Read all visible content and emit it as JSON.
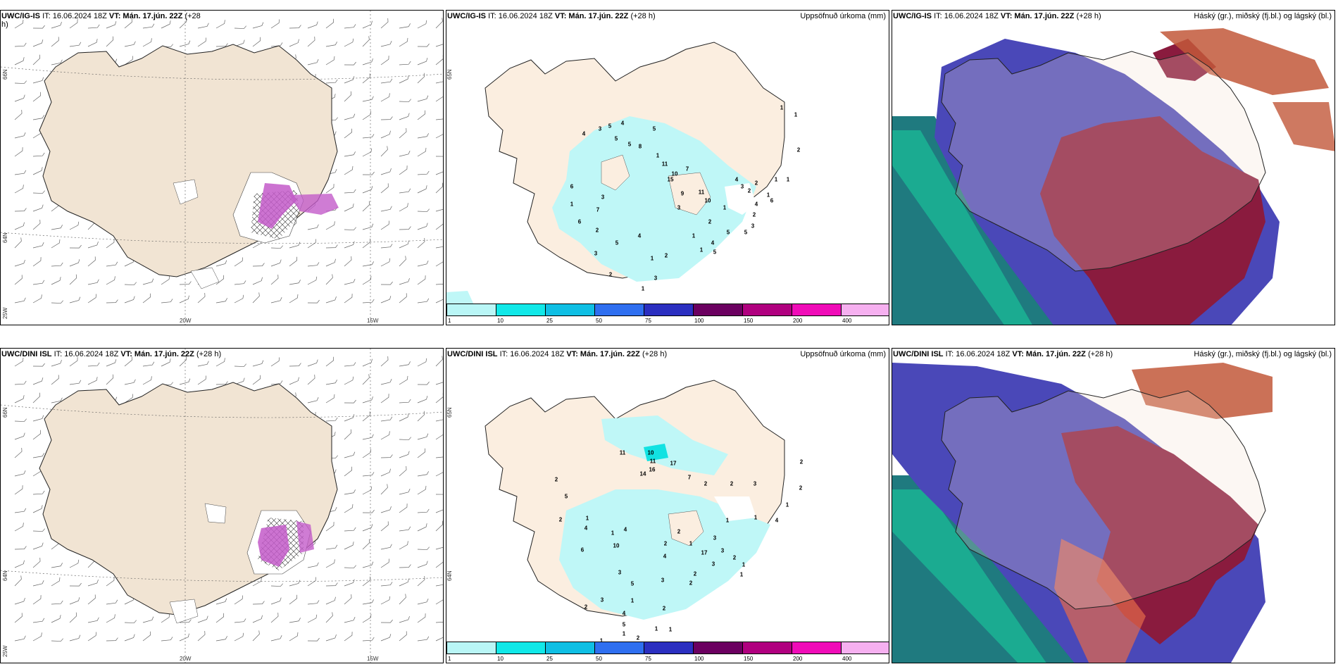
{
  "colors": {
    "land": "#f1e4d3",
    "land_light": "#fbeee0",
    "snow_purple": "#c35bc9",
    "precip_cyan": "#bff7f7",
    "high_cloud_red": "#8a1b3e",
    "mid_cloud_blue": "#4a48b8",
    "low_cloud_green": "#1ab896",
    "sea_teal": "#1f7a7f"
  },
  "panels": [
    {
      "id": "wind-top",
      "model": "UWC/IG-IS",
      "it_label": "IT: 16.06.2024 18Z",
      "vt_label": "VT: Mán. 17.jún. 22Z",
      "lead": "(+28",
      "lead_cont": "h)",
      "right_title": "",
      "lon_labels": [
        "20W",
        "15W"
      ],
      "lat_labels": [
        "66N",
        "64N",
        "25W"
      ]
    },
    {
      "id": "precip-top",
      "model": "UWC/IG-IS",
      "it_label": "IT: 16.06.2024 18Z",
      "vt_label": "VT: Mán. 17.jún. 22Z",
      "lead": "(+28 h)",
      "right_title": "Uppsöfnuð úrkoma (mm)",
      "lat_labels": [
        "65N",
        "64N"
      ],
      "values": [
        "4",
        "3",
        "5",
        "4",
        "5",
        "5",
        "8",
        "5",
        "1",
        "11",
        "10",
        "7",
        "15",
        "9",
        "11",
        "3",
        "10",
        "1",
        "3",
        "2",
        "4",
        "6",
        "1",
        "7",
        "3",
        "2",
        "6",
        "3",
        "5",
        "4",
        "1",
        "2",
        "3",
        "1",
        "2",
        "1",
        "4",
        "5",
        "5",
        "1",
        "2",
        "5",
        "2",
        "1",
        "3",
        "2",
        "4",
        "6",
        "1",
        "1",
        "1",
        "2",
        "1"
      ]
    },
    {
      "id": "cloud-top",
      "model": "UWC/IG-IS",
      "it_label": "IT: 16.06.2024 18Z",
      "vt_label": "VT: Mán. 17.jún. 22Z",
      "lead": "(+28 h)",
      "right_title": "Háský (gr.), miðský (fj.bl.) og lágský (bl.)"
    },
    {
      "id": "wind-bottom",
      "model": "UWC/DINI ISL",
      "it_label": "IT: 16.06.2024 18Z",
      "vt_label": "VT: Mán. 17.jún. 22Z",
      "lead": "(+28 h)",
      "right_title": "",
      "lon_labels": [
        "20W",
        "15W"
      ],
      "lat_labels": [
        "66N",
        "64N",
        "25W"
      ]
    },
    {
      "id": "precip-bottom",
      "model": "UWC/DINI ISL",
      "it_label": "IT: 16.06.2024 18Z",
      "vt_label": "VT: Mán. 17.jún. 22Z",
      "lead": "(+28 h)",
      "right_title": "Uppsöfnuð úrkoma (mm)",
      "lat_labels": [
        "65N",
        "64N"
      ],
      "values": [
        "11",
        "10",
        "11",
        "17",
        "16",
        "14",
        "7",
        "2",
        "2",
        "3",
        "5",
        "2",
        "2",
        "1",
        "4",
        "1",
        "4",
        "10",
        "6",
        "3",
        "5",
        "1",
        "2",
        "3",
        "4",
        "2",
        "2",
        "1",
        "17",
        "3",
        "3",
        "2",
        "1",
        "1",
        "2",
        "3",
        "4",
        "5",
        "1",
        "1",
        "1",
        "1",
        "2",
        "2",
        "2",
        "3",
        "1",
        "1",
        "4",
        "1",
        "2",
        "2"
      ]
    },
    {
      "id": "cloud-bottom",
      "model": "UWC/DINI ISL",
      "it_label": "IT: 16.06.2024 18Z",
      "vt_label": "VT: Mán. 17.jún. 22Z",
      "lead": "(+28 h)",
      "right_title": "Háský (gr.), miðský (fj.bl.) og lágský (bl.)"
    }
  ],
  "colorbar": {
    "labels": [
      "1",
      "10",
      "25",
      "50",
      "75",
      "100",
      "150",
      "200",
      "400"
    ],
    "colors": [
      "#b9f6f6",
      "#11e8e8",
      "#0fbfe4",
      "#2f6ff0",
      "#2b2fc0",
      "#6b0060",
      "#b0007f",
      "#f00cb8",
      "#f6b0f0"
    ]
  }
}
